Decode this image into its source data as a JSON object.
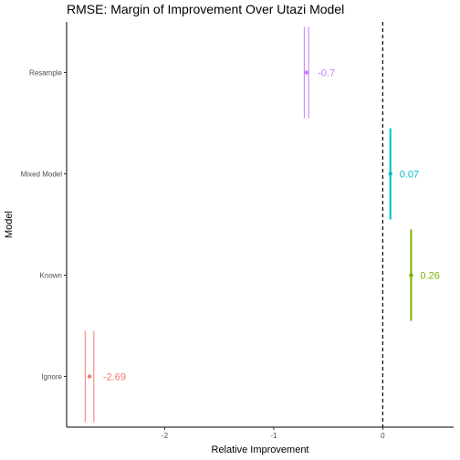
{
  "chart_data": {
    "type": "errorbar",
    "title": "RMSE: Margin of Improvement Over Utazi Model",
    "xlabel": "Relative Improvement",
    "ylabel": "Model",
    "xlim": [
      -2.9,
      0.65
    ],
    "xticks": [
      -2,
      -1,
      0
    ],
    "xtick_labels": [
      "-2",
      "-1",
      "0"
    ],
    "reference_line": {
      "x": 0,
      "style": "dashed"
    },
    "grid": false,
    "categories": [
      "Resample",
      "Mixed Model",
      "Known",
      "Ignore"
    ],
    "points": [
      {
        "model": "Resample",
        "estimate": -0.7,
        "label": "-0.7",
        "lower": -0.72,
        "upper": -0.68,
        "color": "#C77CFF"
      },
      {
        "model": "Mixed Model",
        "estimate": 0.07,
        "label": "0.07",
        "lower": 0.07,
        "upper": 0.07,
        "color": "#00BFC4"
      },
      {
        "model": "Known",
        "estimate": 0.26,
        "label": "0.26",
        "lower": 0.26,
        "upper": 0.26,
        "color": "#7CAE00"
      },
      {
        "model": "Ignore",
        "estimate": -2.69,
        "label": "-2.69",
        "lower": -2.73,
        "upper": -2.65,
        "color": "#F8766D"
      }
    ]
  }
}
